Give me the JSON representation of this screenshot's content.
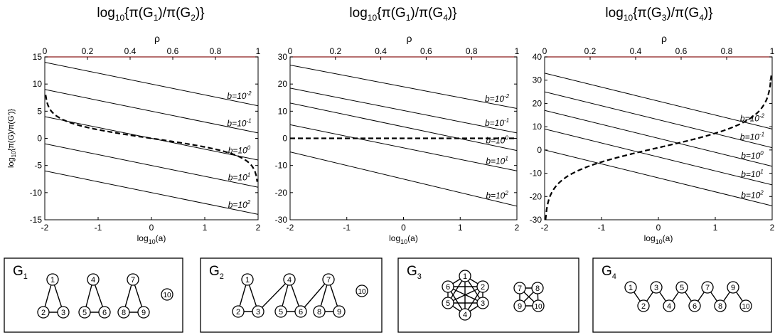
{
  "chart_data": [
    {
      "type": "line",
      "title": "log10{π(G1)/π(G2)}",
      "title_parts": {
        "pre": "log",
        "sub1": "10",
        "mid": "{π(G",
        "sub2": "1",
        "mid2": ")/π(G",
        "sub3": "2",
        "post": ")}"
      },
      "xlabel": "log10(a)",
      "ylabel": "log10{π(G)/π(G')}",
      "top_axis_label": "ρ",
      "xlim": [
        -2,
        2
      ],
      "ylim": [
        -15,
        15
      ],
      "top_lim": [
        0,
        1
      ],
      "x_ticks": [
        "-2",
        "-1",
        "0",
        "1",
        "2"
      ],
      "y_ticks": [
        "-15",
        "-10",
        "-5",
        "0",
        "5",
        "10",
        "15"
      ],
      "top_ticks": [
        "0",
        "0.2",
        "0.4",
        "0.6",
        "0.8",
        "1"
      ],
      "series": [
        {
          "name": "b=10-2",
          "exp": "-2",
          "x": [
            -2,
            2
          ],
          "y": [
            14,
            6
          ]
        },
        {
          "name": "b=10-1",
          "exp": "-1",
          "x": [
            -2,
            2
          ],
          "y": [
            9,
            1
          ]
        },
        {
          "name": "b=100",
          "exp": "0",
          "x": [
            -2,
            2
          ],
          "y": [
            4,
            -4
          ]
        },
        {
          "name": "b=101",
          "exp": "1",
          "x": [
            -2,
            2
          ],
          "y": [
            -1,
            -9
          ]
        },
        {
          "name": "b=102",
          "exp": "2",
          "x": [
            -2,
            2
          ],
          "y": [
            -6,
            -14
          ]
        }
      ],
      "dashed_curve": {
        "rho_range": [
          0,
          1
        ],
        "y_at_edges": [
          8,
          -8
        ]
      }
    },
    {
      "type": "line",
      "title": "log10{π(G1)/π(G4)}",
      "title_parts": {
        "pre": "log",
        "sub1": "10",
        "mid": "{π(G",
        "sub2": "1",
        "mid2": ")/π(G",
        "sub3": "4",
        "post": ")}"
      },
      "xlabel": "log10(a)",
      "top_axis_label": "ρ",
      "xlim": [
        -2,
        2
      ],
      "ylim": [
        -30,
        30
      ],
      "top_lim": [
        0,
        1
      ],
      "x_ticks": [
        "-2",
        "-1",
        "0",
        "1",
        "2"
      ],
      "y_ticks": [
        "-30",
        "-20",
        "-10",
        "0",
        "10",
        "20",
        "30"
      ],
      "top_ticks": [
        "0",
        "0.2",
        "0.4",
        "0.6",
        "0.8",
        "1"
      ],
      "series": [
        {
          "name": "b=10-2",
          "exp": "-2",
          "x": [
            -2,
            2
          ],
          "y": [
            27,
            11
          ]
        },
        {
          "name": "b=10-1",
          "exp": "-1",
          "x": [
            -2,
            2
          ],
          "y": [
            18.5,
            2
          ]
        },
        {
          "name": "b=100",
          "exp": "0",
          "x": [
            -2,
            2
          ],
          "y": [
            13,
            -4.5
          ]
        },
        {
          "name": "b=101",
          "exp": "1",
          "x": [
            -2,
            2
          ],
          "y": [
            5,
            -12
          ]
        },
        {
          "name": "b=102",
          "exp": "2",
          "x": [
            -2,
            2
          ],
          "y": [
            -5,
            -25
          ]
        }
      ],
      "dashed_curve": {
        "rho_range": [
          0,
          1
        ],
        "y_constant": 0
      }
    },
    {
      "type": "line",
      "title": "log10{π(G3)/π(G4)}",
      "title_parts": {
        "pre": "log",
        "sub1": "10",
        "mid": "{π(G",
        "sub2": "3",
        "mid2": ")/π(G",
        "sub3": "4",
        "post": ")}"
      },
      "xlabel": "log10(a)",
      "top_axis_label": "ρ",
      "xlim": [
        -2,
        2
      ],
      "ylim": [
        -30,
        40
      ],
      "top_lim": [
        0,
        1
      ],
      "x_ticks": [
        "-2",
        "-1",
        "0",
        "1",
        "2"
      ],
      "y_ticks": [
        "-30",
        "-20",
        "-10",
        "0",
        "10",
        "20",
        "30",
        "40"
      ],
      "top_ticks": [
        "0",
        "0.2",
        "0.4",
        "0.6",
        "0.8",
        "1"
      ],
      "series": [
        {
          "name": "b=10-2",
          "exp": "-2",
          "x": [
            -2,
            2
          ],
          "y": [
            33,
            9
          ]
        },
        {
          "name": "b=10-1",
          "exp": "-1",
          "x": [
            -2,
            2
          ],
          "y": [
            25,
            1
          ]
        },
        {
          "name": "b=100",
          "exp": "0",
          "x": [
            -2,
            2
          ],
          "y": [
            17,
            -7
          ]
        },
        {
          "name": "b=101",
          "exp": "1",
          "x": [
            -2,
            2
          ],
          "y": [
            9,
            -15
          ]
        },
        {
          "name": "b=102",
          "exp": "2",
          "x": [
            -2,
            2
          ],
          "y": [
            0,
            -24
          ]
        }
      ],
      "dashed_curve": {
        "rho_range": [
          0,
          1
        ],
        "y_at_edges": [
          -30,
          32
        ]
      }
    }
  ],
  "graphs": [
    {
      "label": "G",
      "sub": "1",
      "nodes": [
        "1",
        "2",
        "3",
        "4",
        "5",
        "6",
        "7",
        "8",
        "9",
        "10"
      ],
      "edges": [
        [
          "1",
          "2"
        ],
        [
          "1",
          "3"
        ],
        [
          "2",
          "3"
        ],
        [
          "4",
          "5"
        ],
        [
          "4",
          "6"
        ],
        [
          "5",
          "6"
        ],
        [
          "7",
          "8"
        ],
        [
          "7",
          "9"
        ],
        [
          "8",
          "9"
        ]
      ]
    },
    {
      "label": "G",
      "sub": "2",
      "nodes": [
        "1",
        "2",
        "3",
        "4",
        "5",
        "6",
        "7",
        "8",
        "9",
        "10"
      ],
      "edges": [
        [
          "1",
          "2"
        ],
        [
          "1",
          "3"
        ],
        [
          "2",
          "3"
        ],
        [
          "3",
          "4"
        ],
        [
          "4",
          "5"
        ],
        [
          "4",
          "6"
        ],
        [
          "5",
          "6"
        ],
        [
          "6",
          "7"
        ],
        [
          "7",
          "8"
        ],
        [
          "7",
          "9"
        ],
        [
          "8",
          "9"
        ]
      ]
    },
    {
      "label": "G",
      "sub": "3",
      "nodes": [
        "1",
        "2",
        "3",
        "4",
        "5",
        "6",
        "7",
        "8",
        "9",
        "10"
      ],
      "edges": [
        [
          "1",
          "2"
        ],
        [
          "1",
          "3"
        ],
        [
          "1",
          "4"
        ],
        [
          "1",
          "5"
        ],
        [
          "1",
          "6"
        ],
        [
          "2",
          "3"
        ],
        [
          "2",
          "4"
        ],
        [
          "2",
          "5"
        ],
        [
          "2",
          "6"
        ],
        [
          "3",
          "4"
        ],
        [
          "3",
          "5"
        ],
        [
          "3",
          "6"
        ],
        [
          "4",
          "5"
        ],
        [
          "4",
          "6"
        ],
        [
          "5",
          "6"
        ],
        [
          "7",
          "8"
        ],
        [
          "7",
          "9"
        ],
        [
          "7",
          "10"
        ],
        [
          "8",
          "9"
        ],
        [
          "8",
          "10"
        ],
        [
          "9",
          "10"
        ]
      ]
    },
    {
      "label": "G",
      "sub": "4",
      "nodes": [
        "1",
        "2",
        "3",
        "4",
        "5",
        "6",
        "7",
        "8",
        "9",
        "10"
      ],
      "edges": [
        [
          "1",
          "2"
        ],
        [
          "2",
          "3"
        ],
        [
          "3",
          "4"
        ],
        [
          "4",
          "5"
        ],
        [
          "5",
          "6"
        ],
        [
          "6",
          "7"
        ],
        [
          "7",
          "8"
        ],
        [
          "8",
          "9"
        ],
        [
          "9",
          "10"
        ]
      ]
    }
  ]
}
